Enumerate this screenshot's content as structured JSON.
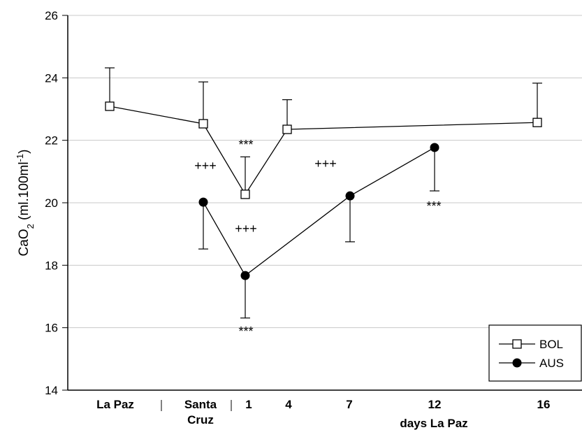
{
  "chart_data": {
    "type": "line",
    "ylabel_parts": [
      "CaO",
      "2",
      " (ml.100ml",
      "-1",
      ")"
    ],
    "xlabel": "days La Paz",
    "categories": [
      "La Paz",
      "Santa Cruz",
      "1",
      "4",
      "7",
      "12",
      "16"
    ],
    "series": [
      {
        "name": "BOL",
        "color": "#000000",
        "marker": "square",
        "error_direction": "up",
        "values": [
          23.09,
          22.53,
          20.27,
          22.35,
          null,
          null,
          22.57
        ],
        "errors": [
          1.23,
          1.34,
          1.2,
          0.95,
          null,
          null,
          1.26
        ]
      },
      {
        "name": "AUS",
        "color": "#000000",
        "marker": "circle",
        "error_direction": "down",
        "values": [
          null,
          20.02,
          17.67,
          null,
          20.22,
          21.77,
          null
        ],
        "errors": [
          null,
          1.5,
          1.36,
          null,
          1.47,
          1.39,
          null
        ]
      }
    ],
    "annotations": [
      "***",
      "+++",
      "+++",
      "+++",
      "***",
      "***"
    ],
    "ylim": [
      14,
      26
    ],
    "yticks": [
      14,
      16,
      18,
      20,
      22,
      24,
      26
    ],
    "grid": true,
    "legend": "lower right"
  }
}
